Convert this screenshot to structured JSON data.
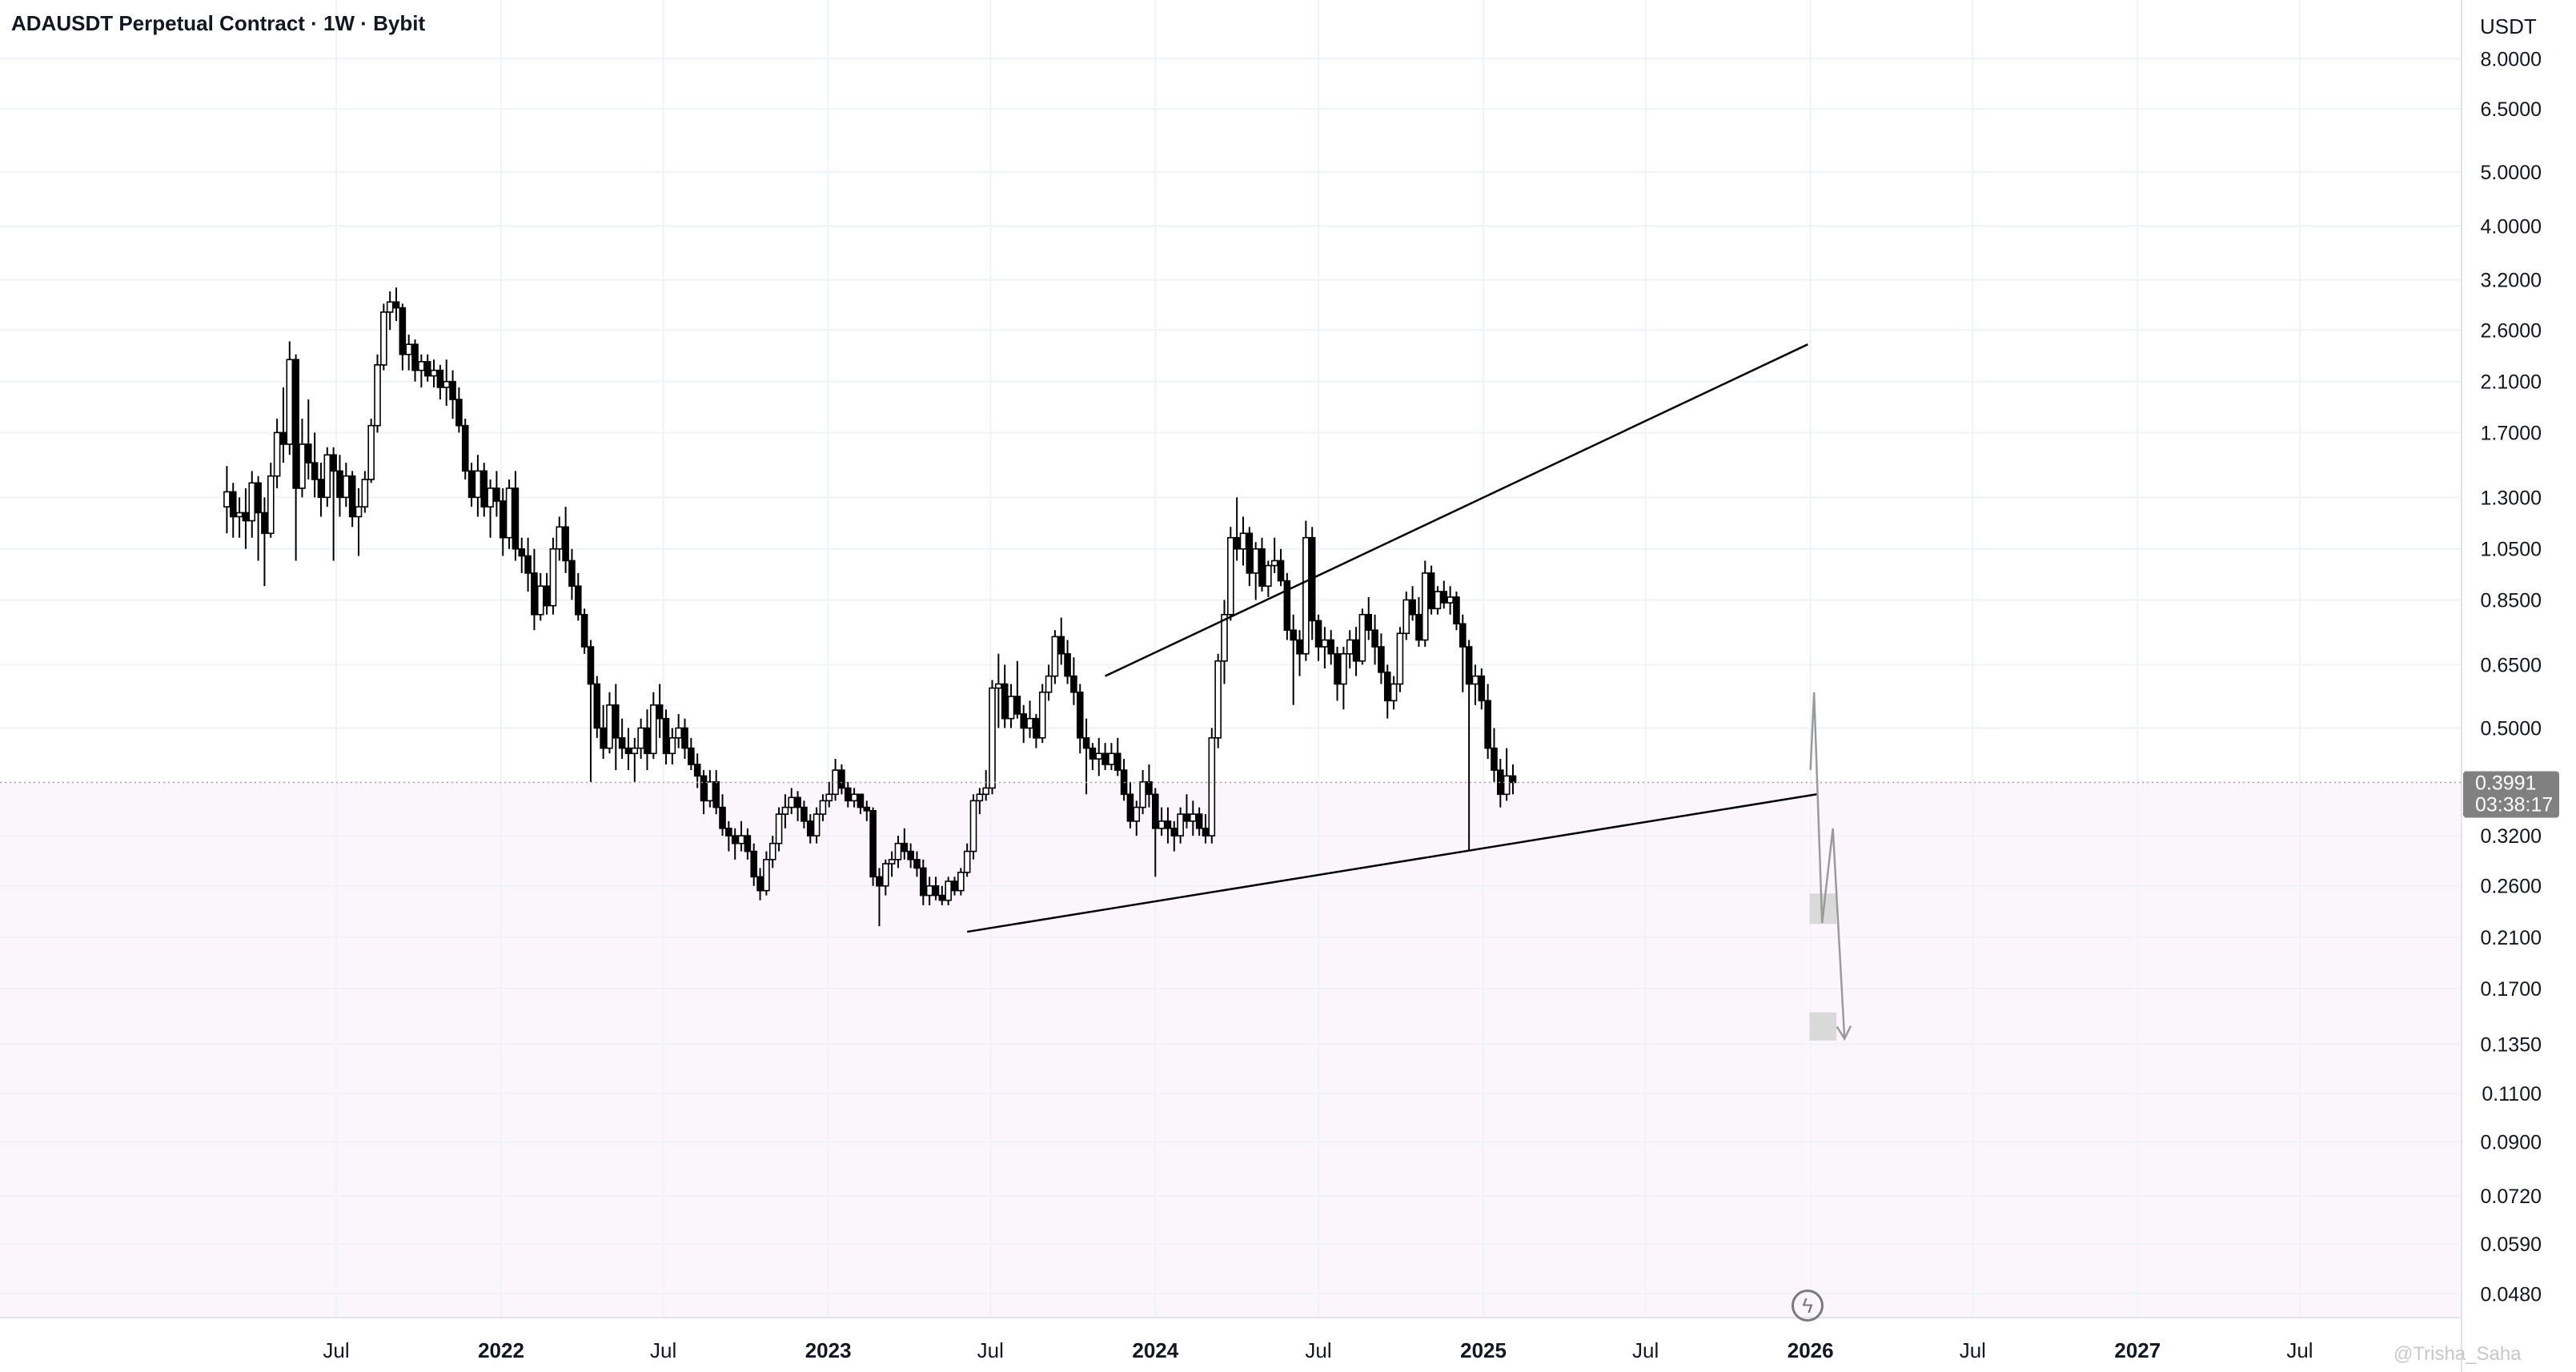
{
  "header": {
    "title": "ADAUSDT Perpetual Contract · 1W · Bybit",
    "unit": "USDT",
    "watermark": "@Trisha_Saha"
  },
  "price_label": {
    "value": "0.3991",
    "countdown": "03:38:17"
  },
  "colors": {
    "candle_up": "#ffffff",
    "candle_down": "#000000",
    "wick": "#000000",
    "grid": "#f0f3fa",
    "price_line": "#b098a8",
    "price_label_bg": "#808080",
    "bear_zone_fill": "#fbf6fb",
    "projection": "#9a9a9a",
    "target_box": "#d9d9d9"
  },
  "chart_data": {
    "type": "candlestick",
    "scale": "log",
    "ylim": [
      0.0435,
      10.2
    ],
    "y_ticks": [
      "8.0000",
      "6.5000",
      "5.0000",
      "4.0000",
      "3.2000",
      "2.6000",
      "2.1000",
      "1.7000",
      "1.3000",
      "1.0500",
      "0.8500",
      "0.6500",
      "0.5000",
      "0.3991",
      "0.3200",
      "0.2600",
      "0.2100",
      "0.1700",
      "0.1350",
      "0.1100",
      "0.0900",
      "0.0720",
      "0.0590",
      "0.0480"
    ],
    "x_ticks": [
      {
        "label": "Jul",
        "date": "2021-07-01",
        "bold": false
      },
      {
        "label": "2022",
        "date": "2022-01-01",
        "bold": true
      },
      {
        "label": "Jul",
        "date": "2022-07-01",
        "bold": false
      },
      {
        "label": "2023",
        "date": "2023-01-01",
        "bold": true
      },
      {
        "label": "Jul",
        "date": "2023-07-01",
        "bold": false
      },
      {
        "label": "2024",
        "date": "2024-01-01",
        "bold": true
      },
      {
        "label": "Jul",
        "date": "2024-07-01",
        "bold": false
      },
      {
        "label": "2025",
        "date": "2025-01-01",
        "bold": true
      },
      {
        "label": "Jul",
        "date": "2025-07-01",
        "bold": false
      },
      {
        "label": "2026",
        "date": "2026-01-01",
        "bold": true
      },
      {
        "label": "Jul",
        "date": "2026-07-01",
        "bold": false
      },
      {
        "label": "2027",
        "date": "2027-01-01",
        "bold": true
      },
      {
        "label": "Jul",
        "date": "2027-07-01",
        "bold": false
      }
    ],
    "first_candle": "2021-03-01",
    "candle_interval_days": 7,
    "ohlc": [
      [
        1.25,
        1.48,
        1.12,
        1.33
      ],
      [
        1.33,
        1.38,
        1.1,
        1.2
      ],
      [
        1.2,
        1.3,
        1.1,
        1.22
      ],
      [
        1.22,
        1.35,
        1.05,
        1.18
      ],
      [
        1.18,
        1.45,
        1.1,
        1.38
      ],
      [
        1.38,
        1.42,
        1.0,
        1.22
      ],
      [
        1.22,
        1.3,
        0.9,
        1.12
      ],
      [
        1.12,
        1.5,
        1.1,
        1.42
      ],
      [
        1.42,
        1.8,
        1.35,
        1.7
      ],
      [
        1.7,
        2.05,
        1.5,
        1.62
      ],
      [
        1.62,
        2.48,
        1.55,
        2.3
      ],
      [
        2.3,
        2.35,
        1.0,
        1.35
      ],
      [
        1.35,
        1.8,
        1.3,
        1.62
      ],
      [
        1.62,
        1.95,
        1.4,
        1.5
      ],
      [
        1.5,
        1.7,
        1.3,
        1.4
      ],
      [
        1.4,
        1.5,
        1.2,
        1.3
      ],
      [
        1.3,
        1.6,
        1.25,
        1.55
      ],
      [
        1.55,
        1.6,
        1.0,
        1.45
      ],
      [
        1.45,
        1.55,
        1.2,
        1.3
      ],
      [
        1.3,
        1.5,
        1.25,
        1.42
      ],
      [
        1.42,
        1.45,
        1.15,
        1.2
      ],
      [
        1.2,
        1.35,
        1.02,
        1.25
      ],
      [
        1.25,
        1.45,
        1.22,
        1.4
      ],
      [
        1.4,
        1.8,
        1.38,
        1.75
      ],
      [
        1.75,
        2.35,
        1.7,
        2.25
      ],
      [
        2.25,
        2.9,
        2.2,
        2.8
      ],
      [
        2.8,
        3.05,
        2.6,
        2.92
      ],
      [
        2.92,
        3.1,
        2.7,
        2.85
      ],
      [
        2.85,
        2.9,
        2.2,
        2.35
      ],
      [
        2.35,
        2.55,
        2.2,
        2.45
      ],
      [
        2.45,
        2.5,
        2.1,
        2.2
      ],
      [
        2.2,
        2.35,
        2.05,
        2.28
      ],
      [
        2.28,
        2.35,
        2.1,
        2.15
      ],
      [
        2.15,
        2.3,
        2.05,
        2.2
      ],
      [
        2.2,
        2.25,
        1.95,
        2.05
      ],
      [
        2.05,
        2.3,
        1.9,
        2.1
      ],
      [
        2.1,
        2.2,
        1.8,
        1.95
      ],
      [
        1.95,
        2.05,
        1.7,
        1.75
      ],
      [
        1.75,
        1.8,
        1.4,
        1.45
      ],
      [
        1.45,
        1.5,
        1.25,
        1.3
      ],
      [
        1.3,
        1.55,
        1.2,
        1.45
      ],
      [
        1.45,
        1.5,
        1.2,
        1.25
      ],
      [
        1.25,
        1.4,
        1.1,
        1.35
      ],
      [
        1.35,
        1.45,
        1.2,
        1.28
      ],
      [
        1.28,
        1.35,
        1.02,
        1.1
      ],
      [
        1.1,
        1.4,
        1.05,
        1.35
      ],
      [
        1.35,
        1.45,
        1.0,
        1.05
      ],
      [
        1.05,
        1.1,
        0.95,
        1.02
      ],
      [
        1.02,
        1.1,
        0.88,
        0.95
      ],
      [
        0.95,
        1.05,
        0.75,
        0.8
      ],
      [
        0.8,
        0.95,
        0.78,
        0.9
      ],
      [
        0.9,
        0.95,
        0.8,
        0.83
      ],
      [
        0.83,
        1.1,
        0.8,
        1.05
      ],
      [
        1.05,
        1.2,
        1.0,
        1.15
      ],
      [
        1.15,
        1.25,
        0.95,
        1.0
      ],
      [
        1.0,
        1.05,
        0.85,
        0.9
      ],
      [
        0.9,
        0.95,
        0.78,
        0.8
      ],
      [
        0.8,
        0.82,
        0.68,
        0.7
      ],
      [
        0.7,
        0.72,
        0.4,
        0.6
      ],
      [
        0.6,
        0.62,
        0.48,
        0.5
      ],
      [
        0.5,
        0.55,
        0.44,
        0.46
      ],
      [
        0.46,
        0.58,
        0.45,
        0.55
      ],
      [
        0.55,
        0.6,
        0.42,
        0.48
      ],
      [
        0.48,
        0.52,
        0.44,
        0.46
      ],
      [
        0.46,
        0.5,
        0.42,
        0.45
      ],
      [
        0.45,
        0.48,
        0.4,
        0.46
      ],
      [
        0.46,
        0.52,
        0.44,
        0.5
      ],
      [
        0.5,
        0.54,
        0.42,
        0.45
      ],
      [
        0.45,
        0.58,
        0.44,
        0.55
      ],
      [
        0.55,
        0.6,
        0.48,
        0.52
      ],
      [
        0.52,
        0.54,
        0.43,
        0.45
      ],
      [
        0.45,
        0.5,
        0.43,
        0.48
      ],
      [
        0.48,
        0.53,
        0.46,
        0.5
      ],
      [
        0.5,
        0.52,
        0.44,
        0.46
      ],
      [
        0.46,
        0.48,
        0.42,
        0.43
      ],
      [
        0.43,
        0.45,
        0.39,
        0.41
      ],
      [
        0.41,
        0.42,
        0.35,
        0.37
      ],
      [
        0.37,
        0.42,
        0.36,
        0.4
      ],
      [
        0.4,
        0.42,
        0.35,
        0.36
      ],
      [
        0.36,
        0.38,
        0.32,
        0.33
      ],
      [
        0.33,
        0.34,
        0.3,
        0.32
      ],
      [
        0.32,
        0.33,
        0.29,
        0.31
      ],
      [
        0.31,
        0.34,
        0.3,
        0.32
      ],
      [
        0.32,
        0.33,
        0.29,
        0.3
      ],
      [
        0.3,
        0.31,
        0.26,
        0.27
      ],
      [
        0.27,
        0.28,
        0.245,
        0.255
      ],
      [
        0.255,
        0.3,
        0.25,
        0.29
      ],
      [
        0.29,
        0.32,
        0.28,
        0.31
      ],
      [
        0.31,
        0.36,
        0.3,
        0.35
      ],
      [
        0.35,
        0.38,
        0.33,
        0.36
      ],
      [
        0.36,
        0.39,
        0.35,
        0.375
      ],
      [
        0.375,
        0.385,
        0.34,
        0.36
      ],
      [
        0.36,
        0.37,
        0.33,
        0.34
      ],
      [
        0.34,
        0.35,
        0.31,
        0.32
      ],
      [
        0.32,
        0.36,
        0.31,
        0.35
      ],
      [
        0.35,
        0.38,
        0.34,
        0.37
      ],
      [
        0.37,
        0.4,
        0.36,
        0.38
      ],
      [
        0.38,
        0.44,
        0.37,
        0.42
      ],
      [
        0.42,
        0.43,
        0.38,
        0.39
      ],
      [
        0.39,
        0.4,
        0.36,
        0.37
      ],
      [
        0.37,
        0.39,
        0.36,
        0.38
      ],
      [
        0.38,
        0.38,
        0.35,
        0.36
      ],
      [
        0.36,
        0.37,
        0.34,
        0.355
      ],
      [
        0.355,
        0.36,
        0.26,
        0.27
      ],
      [
        0.27,
        0.28,
        0.22,
        0.26
      ],
      [
        0.26,
        0.29,
        0.25,
        0.285
      ],
      [
        0.285,
        0.3,
        0.27,
        0.29
      ],
      [
        0.29,
        0.32,
        0.28,
        0.31
      ],
      [
        0.31,
        0.33,
        0.29,
        0.3
      ],
      [
        0.3,
        0.31,
        0.28,
        0.29
      ],
      [
        0.29,
        0.3,
        0.27,
        0.28
      ],
      [
        0.28,
        0.29,
        0.24,
        0.25
      ],
      [
        0.25,
        0.27,
        0.24,
        0.26
      ],
      [
        0.26,
        0.27,
        0.245,
        0.25
      ],
      [
        0.25,
        0.26,
        0.24,
        0.245
      ],
      [
        0.245,
        0.27,
        0.24,
        0.265
      ],
      [
        0.265,
        0.27,
        0.25,
        0.255
      ],
      [
        0.255,
        0.28,
        0.25,
        0.275
      ],
      [
        0.275,
        0.31,
        0.27,
        0.3
      ],
      [
        0.3,
        0.38,
        0.29,
        0.37
      ],
      [
        0.37,
        0.39,
        0.35,
        0.38
      ],
      [
        0.38,
        0.42,
        0.37,
        0.39
      ],
      [
        0.39,
        0.61,
        0.38,
        0.59
      ],
      [
        0.59,
        0.68,
        0.5,
        0.6
      ],
      [
        0.6,
        0.65,
        0.5,
        0.52
      ],
      [
        0.52,
        0.6,
        0.5,
        0.57
      ],
      [
        0.57,
        0.66,
        0.52,
        0.53
      ],
      [
        0.53,
        0.55,
        0.47,
        0.5
      ],
      [
        0.5,
        0.56,
        0.48,
        0.52
      ],
      [
        0.52,
        0.53,
        0.46,
        0.48
      ],
      [
        0.48,
        0.6,
        0.47,
        0.58
      ],
      [
        0.58,
        0.65,
        0.56,
        0.62
      ],
      [
        0.62,
        0.75,
        0.6,
        0.73
      ],
      [
        0.73,
        0.79,
        0.65,
        0.68
      ],
      [
        0.68,
        0.72,
        0.6,
        0.62
      ],
      [
        0.62,
        0.67,
        0.55,
        0.58
      ],
      [
        0.58,
        0.6,
        0.45,
        0.48
      ],
      [
        0.48,
        0.52,
        0.38,
        0.46
      ],
      [
        0.46,
        0.47,
        0.42,
        0.44
      ],
      [
        0.44,
        0.48,
        0.41,
        0.45
      ],
      [
        0.45,
        0.47,
        0.42,
        0.43
      ],
      [
        0.43,
        0.47,
        0.42,
        0.45
      ],
      [
        0.45,
        0.48,
        0.41,
        0.42
      ],
      [
        0.42,
        0.44,
        0.37,
        0.38
      ],
      [
        0.38,
        0.4,
        0.33,
        0.34
      ],
      [
        0.34,
        0.37,
        0.32,
        0.36
      ],
      [
        0.36,
        0.42,
        0.35,
        0.4
      ],
      [
        0.4,
        0.43,
        0.36,
        0.38
      ],
      [
        0.38,
        0.39,
        0.27,
        0.33
      ],
      [
        0.33,
        0.36,
        0.32,
        0.34
      ],
      [
        0.34,
        0.36,
        0.31,
        0.33
      ],
      [
        0.33,
        0.34,
        0.3,
        0.32
      ],
      [
        0.32,
        0.36,
        0.31,
        0.35
      ],
      [
        0.35,
        0.38,
        0.33,
        0.34
      ],
      [
        0.34,
        0.37,
        0.32,
        0.35
      ],
      [
        0.35,
        0.36,
        0.32,
        0.33
      ],
      [
        0.33,
        0.35,
        0.31,
        0.32
      ],
      [
        0.32,
        0.5,
        0.31,
        0.48
      ],
      [
        0.48,
        0.68,
        0.46,
        0.66
      ],
      [
        0.66,
        0.85,
        0.6,
        0.8
      ],
      [
        0.8,
        1.15,
        0.78,
        1.1
      ],
      [
        1.1,
        1.3,
        1.0,
        1.05
      ],
      [
        1.05,
        1.2,
        0.98,
        1.12
      ],
      [
        1.12,
        1.15,
        0.9,
        0.95
      ],
      [
        0.95,
        1.08,
        0.85,
        1.05
      ],
      [
        1.05,
        1.1,
        0.88,
        0.9
      ],
      [
        0.9,
        1.0,
        0.86,
        0.98
      ],
      [
        0.98,
        1.1,
        0.95,
        1.0
      ],
      [
        1.0,
        1.05,
        0.9,
        0.92
      ],
      [
        0.92,
        0.95,
        0.72,
        0.75
      ],
      [
        0.75,
        0.8,
        0.55,
        0.72
      ],
      [
        0.72,
        0.75,
        0.62,
        0.68
      ],
      [
        0.68,
        1.18,
        0.66,
        1.1
      ],
      [
        1.1,
        1.15,
        0.72,
        0.78
      ],
      [
        0.78,
        0.8,
        0.66,
        0.7
      ],
      [
        0.7,
        0.76,
        0.64,
        0.72
      ],
      [
        0.72,
        0.75,
        0.65,
        0.68
      ],
      [
        0.68,
        0.7,
        0.56,
        0.6
      ],
      [
        0.6,
        0.7,
        0.54,
        0.68
      ],
      [
        0.68,
        0.75,
        0.64,
        0.72
      ],
      [
        0.72,
        0.76,
        0.62,
        0.66
      ],
      [
        0.66,
        0.82,
        0.65,
        0.8
      ],
      [
        0.8,
        0.86,
        0.72,
        0.75
      ],
      [
        0.75,
        0.8,
        0.65,
        0.7
      ],
      [
        0.7,
        0.74,
        0.6,
        0.63
      ],
      [
        0.63,
        0.65,
        0.52,
        0.56
      ],
      [
        0.56,
        0.62,
        0.54,
        0.6
      ],
      [
        0.6,
        0.76,
        0.58,
        0.74
      ],
      [
        0.74,
        0.88,
        0.72,
        0.85
      ],
      [
        0.85,
        0.9,
        0.78,
        0.8
      ],
      [
        0.8,
        0.86,
        0.7,
        0.72
      ],
      [
        0.72,
        1.0,
        0.7,
        0.95
      ],
      [
        0.95,
        0.98,
        0.8,
        0.82
      ],
      [
        0.82,
        0.9,
        0.8,
        0.88
      ],
      [
        0.88,
        0.92,
        0.82,
        0.84
      ],
      [
        0.84,
        0.9,
        0.8,
        0.86
      ],
      [
        0.86,
        0.88,
        0.75,
        0.77
      ],
      [
        0.77,
        0.8,
        0.58,
        0.7
      ],
      [
        0.7,
        0.72,
        0.3,
        0.6
      ],
      [
        0.6,
        0.65,
        0.55,
        0.62
      ],
      [
        0.62,
        0.64,
        0.54,
        0.56
      ],
      [
        0.56,
        0.6,
        0.44,
        0.46
      ],
      [
        0.46,
        0.5,
        0.4,
        0.42
      ],
      [
        0.42,
        0.44,
        0.36,
        0.38
      ],
      [
        0.38,
        0.46,
        0.37,
        0.41
      ],
      [
        0.41,
        0.43,
        0.38,
        0.3991
      ]
    ],
    "trendlines": [
      {
        "name": "upper resistance",
        "from": [
          "2023-11-06",
          0.62
        ],
        "to": [
          "2025-12-29",
          2.45
        ]
      },
      {
        "name": "lower support",
        "from": [
          "2023-06-05",
          0.215
        ],
        "to": [
          "2026-01-08",
          0.38
        ]
      }
    ],
    "projection_path": [
      [
        "2026-01-01",
        0.42
      ],
      [
        "2026-01-05",
        0.58
      ],
      [
        "2026-01-14",
        0.223
      ],
      [
        "2026-01-26",
        0.33
      ],
      [
        "2026-02-08",
        0.138
      ]
    ],
    "target_zones": [
      {
        "from": "2025-12-31",
        "to": "2026-01-30",
        "low": 0.222,
        "high": 0.252
      },
      {
        "from": "2025-12-31",
        "to": "2026-01-30",
        "low": 0.137,
        "high": 0.154
      }
    ]
  }
}
